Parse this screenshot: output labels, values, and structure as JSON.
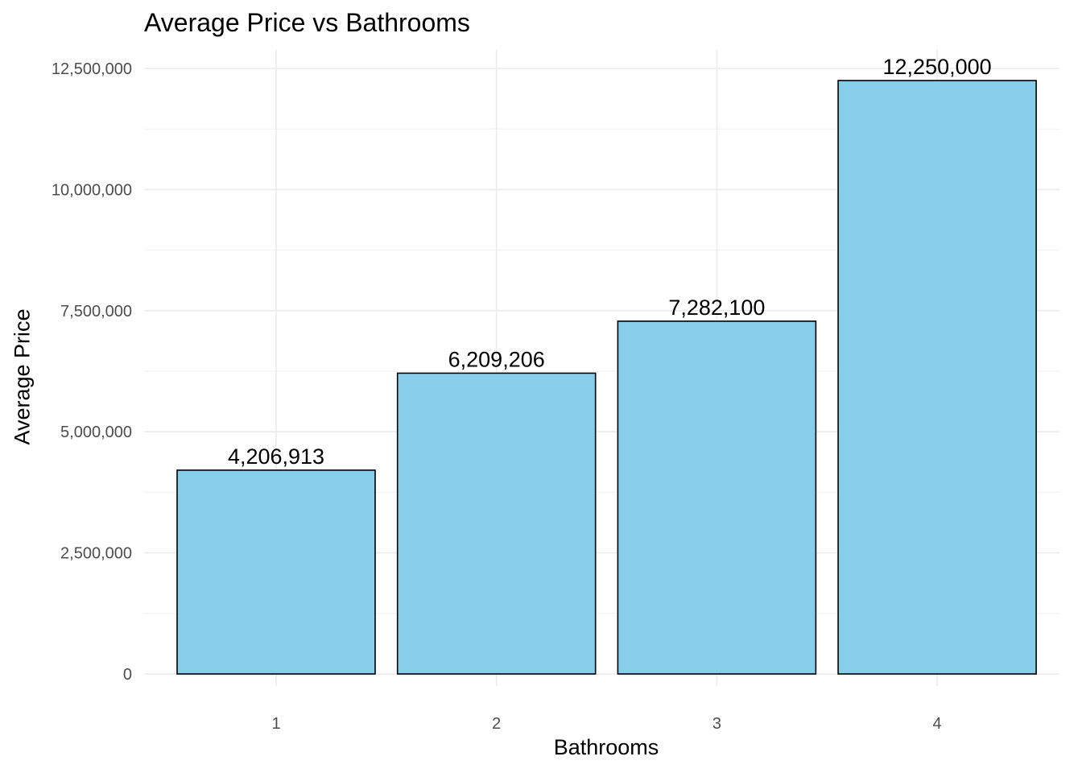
{
  "chart_data": {
    "type": "bar",
    "title": "Average Price vs Bathrooms",
    "xlabel": "Bathrooms",
    "ylabel": "Average Price",
    "categories": [
      "1",
      "2",
      "3",
      "4"
    ],
    "values": [
      4206913,
      6209206,
      7282100,
      12250000
    ],
    "value_labels": [
      "4,206,913",
      "6,209,206",
      "7,282,100",
      "12,250,000"
    ],
    "ylim": [
      0,
      12500000
    ],
    "y_ticks": [
      0,
      2500000,
      5000000,
      7500000,
      10000000,
      12500000
    ],
    "y_tick_labels": [
      "0",
      "2,500,000",
      "5,000,000",
      "7,500,000",
      "10,000,000",
      "12,500,000"
    ],
    "grid": true,
    "legend": "none",
    "colors": {
      "bar_fill": "#87ceeb",
      "bar_stroke": "#000000",
      "grid_major": "#ebebeb",
      "grid_minor": "#f4f4f4",
      "tick_text": "#4d4d4d",
      "label_text": "#000000"
    }
  }
}
